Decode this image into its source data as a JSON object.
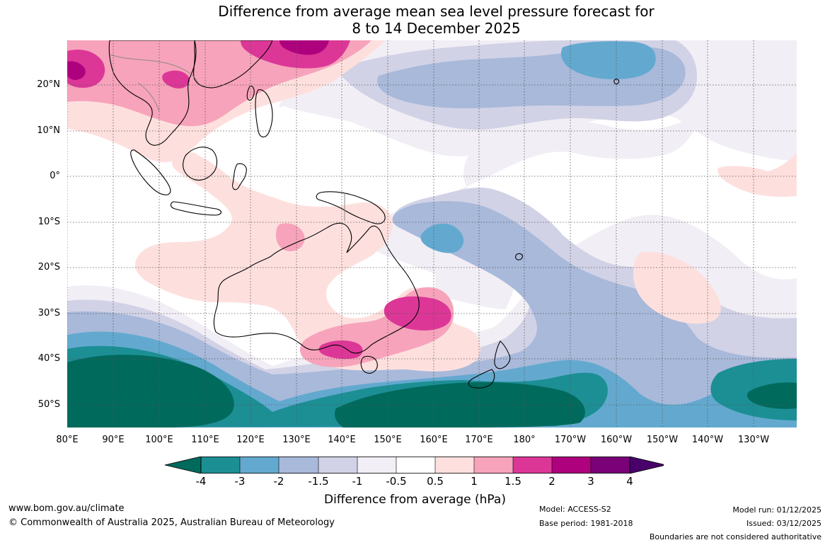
{
  "title": {
    "line1": "Difference from average mean sea level pressure forecast for",
    "line2": "8 to 14 December 2025"
  },
  "map": {
    "lat_labels": [
      "20°N",
      "10°N",
      "0°",
      "10°S",
      "20°S",
      "30°S",
      "40°S",
      "50°S"
    ],
    "lon_labels": [
      "80°E",
      "90°E",
      "100°E",
      "110°E",
      "120°E",
      "130°E",
      "140°E",
      "150°E",
      "160°E",
      "170°E",
      "180°",
      "170°W",
      "160°W",
      "150°W",
      "140°W",
      "130°W"
    ],
    "land_outline_color": "#000000",
    "border_color": "#8a8a8a",
    "gridline_color": "#555555"
  },
  "legend": {
    "ticks": [
      "-4",
      "-3",
      "-2",
      "-1.5",
      "-1",
      "-0.5",
      "0.5",
      "1",
      "1.5",
      "2",
      "3",
      "4"
    ],
    "colors": [
      "#006a5c",
      "#1c8f95",
      "#63a9cf",
      "#a8b9da",
      "#d2d2e6",
      "#f1eef5",
      "#ffffff",
      "#fde0de",
      "#f7a3bb",
      "#dc3797",
      "#ae017e",
      "#7a0177",
      "#49006a"
    ],
    "title": "Difference from average (hPa)"
  },
  "footer": {
    "website": "www.bom.gov.au/climate",
    "copyright": "© Commonwealth of Australia 2025, Australian Bureau of Meteorology",
    "model": "Model: ACCESS-S2",
    "base_period": "Base period: 1981-2018",
    "model_run": "Model run: 01/12/2025",
    "issued": "Issued: 03/12/2025",
    "disclaimer": "Boundaries are not considered authoritative"
  }
}
